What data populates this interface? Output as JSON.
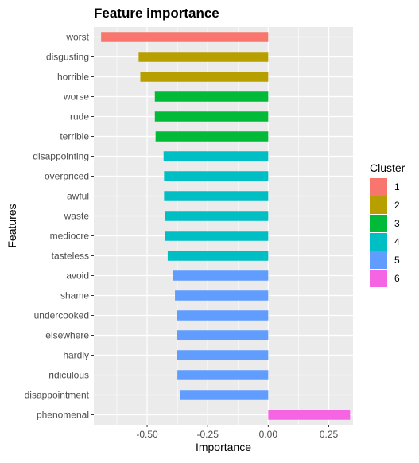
{
  "chart_data": {
    "type": "bar",
    "orientation": "horizontal",
    "title": "Feature importance",
    "xlabel": "Importance",
    "ylabel": "Features",
    "xlim": [
      -0.72,
      0.35
    ],
    "xticks": [
      -0.5,
      -0.25,
      0.0,
      0.25
    ],
    "xtick_labels": [
      "-0.50",
      "-0.25",
      "0.00",
      "0.25"
    ],
    "grid": true,
    "legend_position": "right",
    "legend_title": "Cluster",
    "clusters": [
      {
        "name": "1",
        "color": "#F8766D"
      },
      {
        "name": "2",
        "color": "#B79F00"
      },
      {
        "name": "3",
        "color": "#00BA38"
      },
      {
        "name": "4",
        "color": "#00BFC4"
      },
      {
        "name": "5",
        "color": "#619CFF"
      },
      {
        "name": "6",
        "color": "#F564E3"
      }
    ],
    "categories": [
      "worst",
      "disgusting",
      "horrible",
      "worse",
      "rude",
      "terrible",
      "disappointing",
      "overpriced",
      "awful",
      "waste",
      "mediocre",
      "tasteless",
      "avoid",
      "shame",
      "undercooked",
      "elsewhere",
      "hardly",
      "ridiculous",
      "disappointment",
      "phenomenal"
    ],
    "values": [
      -0.69,
      -0.535,
      -0.528,
      -0.468,
      -0.468,
      -0.465,
      -0.432,
      -0.43,
      -0.43,
      -0.427,
      -0.425,
      -0.415,
      -0.395,
      -0.385,
      -0.378,
      -0.378,
      -0.378,
      -0.375,
      -0.365,
      0.338
    ],
    "cluster": [
      "1",
      "2",
      "2",
      "3",
      "3",
      "3",
      "4",
      "4",
      "4",
      "4",
      "4",
      "4",
      "5",
      "5",
      "5",
      "5",
      "5",
      "5",
      "5",
      "6"
    ]
  }
}
